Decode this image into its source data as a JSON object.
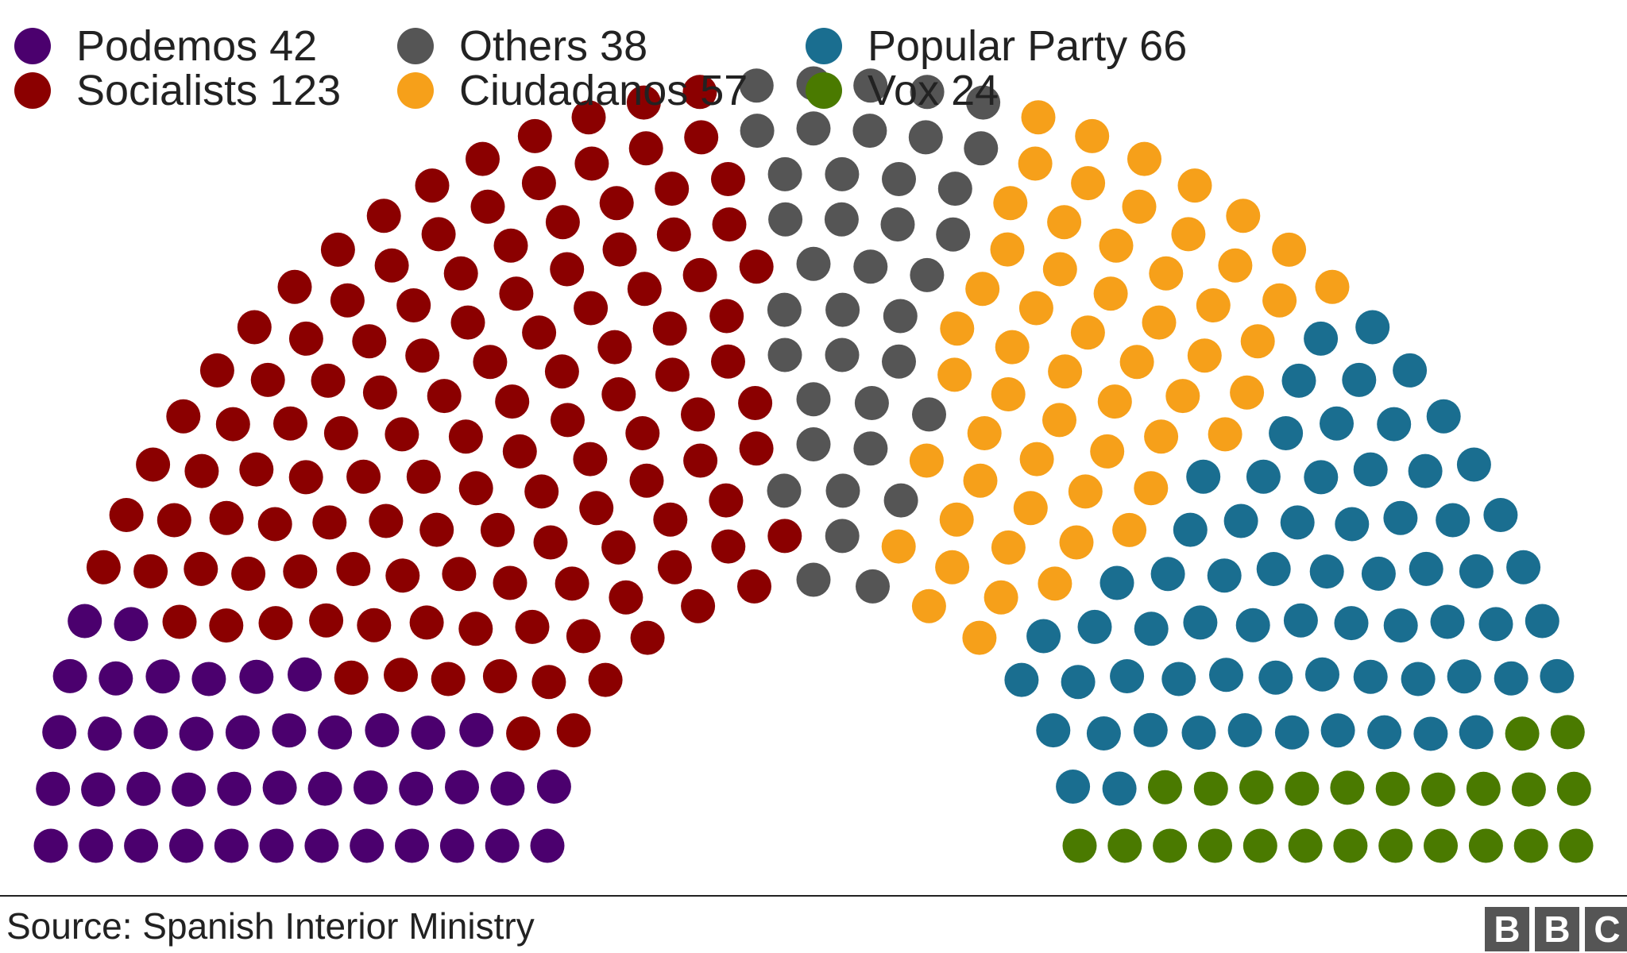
{
  "chart_data": {
    "type": "parliament",
    "title": "",
    "total_seats": 350,
    "series": [
      {
        "name": "Podemos",
        "value": 42,
        "label": "Podemos 42",
        "color": "#4b006e"
      },
      {
        "name": "Socialists",
        "value": 123,
        "label": "Socialists 123",
        "color": "#8b0000"
      },
      {
        "name": "Others",
        "value": 38,
        "label": "Others 38",
        "color": "#555555"
      },
      {
        "name": "Ciudadanos",
        "value": 57,
        "label": "Ciudadanos 57",
        "color": "#f6a01a"
      },
      {
        "name": "Popular Party",
        "value": 66,
        "label": "Popular Party 66",
        "color": "#1a6e90"
      },
      {
        "name": "Vox",
        "value": 24,
        "label": "Vox 24",
        "color": "#4a7a00"
      }
    ]
  },
  "footer": {
    "source": "Source: Spanish Interior Ministry",
    "logo": [
      "B",
      "B",
      "C"
    ]
  }
}
